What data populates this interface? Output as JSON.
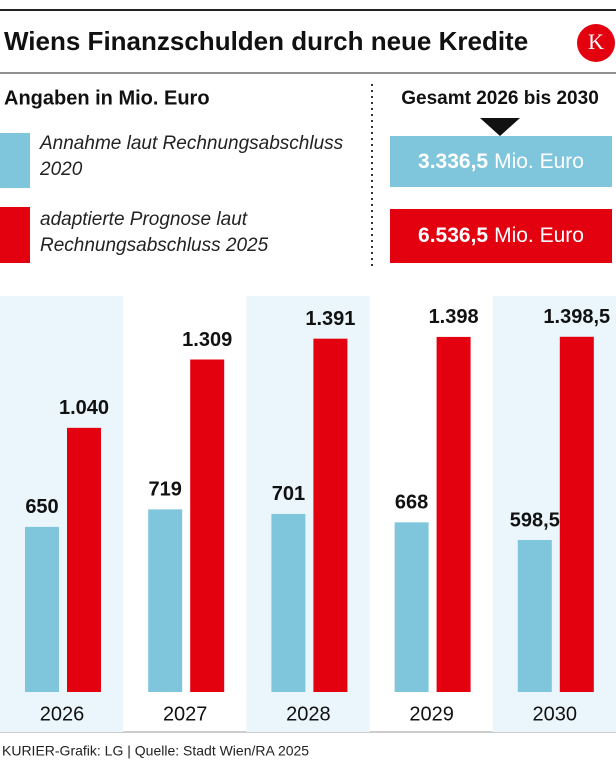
{
  "title": "Wiens Finanzschulden durch neue Kredite",
  "logo": "K",
  "chart_data": {
    "type": "bar",
    "subtitle": "Angaben in Mio. Euro",
    "categories": [
      "2026",
      "2027",
      "2028",
      "2029",
      "2030"
    ],
    "series": [
      {
        "name": "Annahme laut Rechnungsabschluss 2020",
        "color": "#7fc6dc",
        "values": [
          650,
          719,
          701,
          668,
          598.5
        ],
        "value_labels": [
          "650",
          "719",
          "701",
          "668",
          "598,5"
        ]
      },
      {
        "name": "adaptierte Prognose laut Rechnungsabschluss 2025",
        "color": "#e3000f",
        "values": [
          1040,
          1309,
          1391,
          1398,
          1398.5
        ],
        "value_labels": [
          "1.040",
          "1.309",
          "1.391",
          "1.398",
          "1.398,5"
        ]
      }
    ],
    "totals_title": "Gesamt 2026 bis 2030",
    "totals": [
      {
        "amount": "3.336,5",
        "unit": "Mio. Euro"
      },
      {
        "amount": "6.536,5",
        "unit": "Mio. Euro"
      }
    ]
  },
  "source": "KURIER-Grafik: LG | Quelle: Stadt Wien/RA 2025"
}
